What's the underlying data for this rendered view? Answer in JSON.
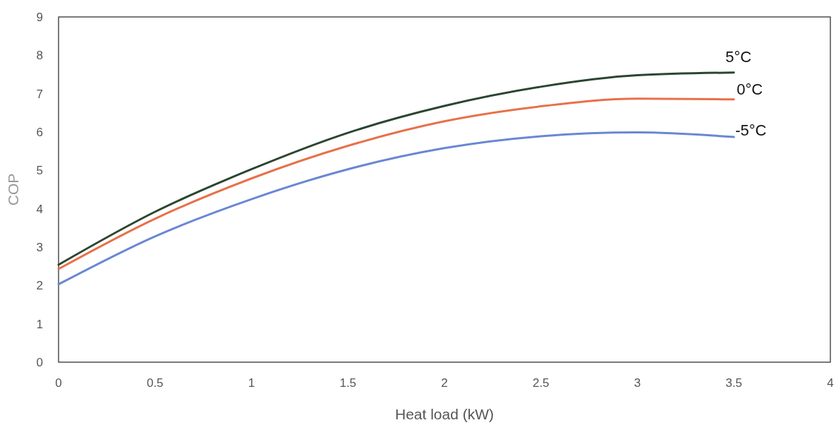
{
  "chart_data": {
    "type": "line",
    "xlabel": "Heat load (kW)",
    "ylabel": "COP",
    "x": [
      0,
      0.5,
      1,
      1.5,
      2,
      2.5,
      3,
      3.5
    ],
    "series": [
      {
        "name": "5°C",
        "color": "#2b4530",
        "values": [
          2.54,
          3.92,
          5.03,
          5.98,
          6.68,
          7.18,
          7.48,
          7.55
        ]
      },
      {
        "name": "0°C",
        "color": "#e8704a",
        "values": [
          2.43,
          3.74,
          4.79,
          5.64,
          6.28,
          6.67,
          6.87,
          6.85
        ]
      },
      {
        "name": "-5°C",
        "color": "#6a87d4",
        "values": [
          2.03,
          3.28,
          4.25,
          5.03,
          5.58,
          5.89,
          5.99,
          5.87
        ]
      }
    ],
    "xlim": [
      0,
      4
    ],
    "xticks": [
      0,
      0.5,
      1,
      1.5,
      2,
      2.5,
      3,
      3.5,
      4
    ],
    "ylim": [
      0,
      9
    ],
    "yticks": [
      0,
      1,
      2,
      3,
      4,
      5,
      6,
      7,
      8,
      9
    ],
    "grid": false,
    "marker": "none",
    "line_style": "solid"
  }
}
